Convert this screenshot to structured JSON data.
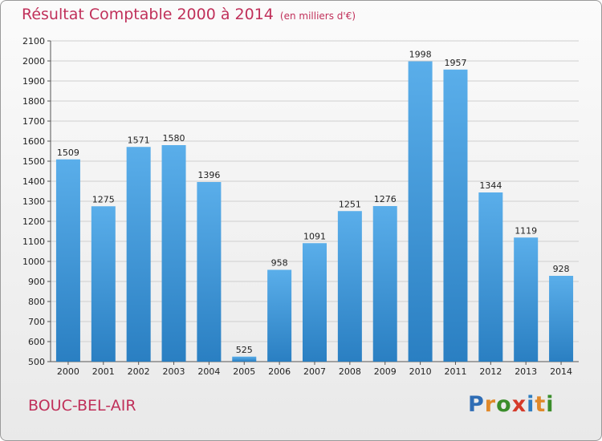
{
  "header": {
    "title": "Résultat Comptable 2000 à 2014",
    "unit": "(en milliers d'€)"
  },
  "footer": {
    "town": "BOUC-BEL-AIR",
    "logo_letters": [
      "P",
      "r",
      "o",
      "x",
      "i",
      "t",
      "i"
    ],
    "logo_colors": [
      "#2f6db5",
      "#e0892a",
      "#3b8d2b",
      "#d53a2a",
      "#2f7dc0",
      "#e0892a",
      "#3b8d2b"
    ]
  },
  "chart_data": {
    "type": "bar",
    "categories": [
      "2000",
      "2001",
      "2002",
      "2003",
      "2004",
      "2005",
      "2006",
      "2007",
      "2008",
      "2009",
      "2010",
      "2011",
      "2012",
      "2013",
      "2014"
    ],
    "values": [
      1509,
      1275,
      1571,
      1580,
      1396,
      525,
      958,
      1091,
      1251,
      1276,
      1998,
      1957,
      1344,
      1119,
      928
    ],
    "ylim": [
      500,
      2100
    ],
    "yticks": [
      500,
      600,
      700,
      800,
      900,
      1000,
      1100,
      1200,
      1300,
      1400,
      1500,
      1600,
      1700,
      1800,
      1900,
      2000,
      2100
    ],
    "grid": true,
    "colors": {
      "bar_light": "#5aaeea",
      "bar_dark": "#2a7fc2",
      "grid": "#cfcfcf",
      "axis": "#555555"
    }
  }
}
